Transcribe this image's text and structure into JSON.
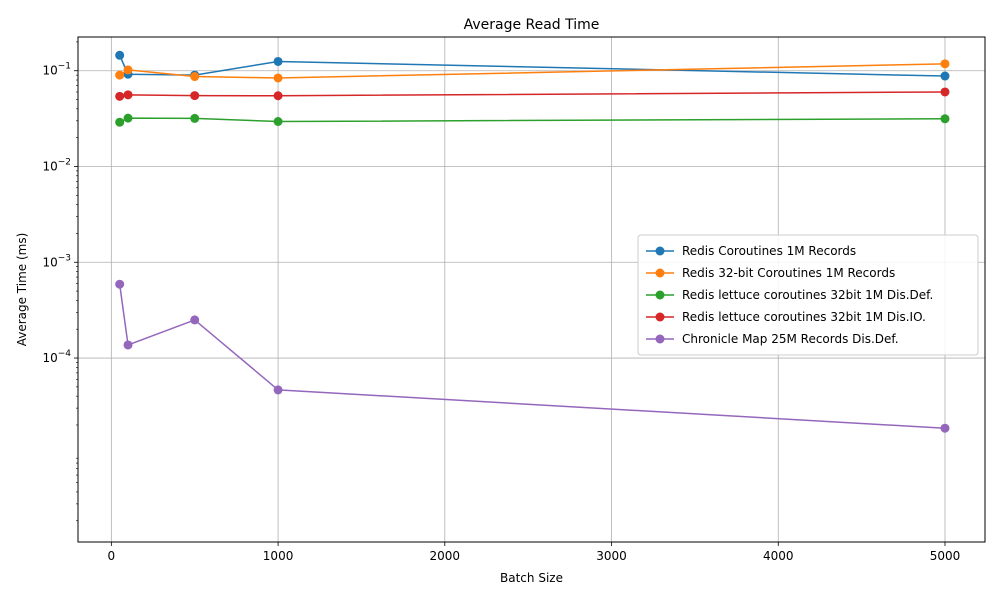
{
  "chart_data": {
    "type": "line",
    "title": "Average Read Time",
    "xlabel": "Batch Size",
    "ylabel": "Average Time (ms)",
    "xlim": [
      -200,
      5240
    ],
    "ylim": [
      1.2e-06,
      0.225
    ],
    "yscale": "log",
    "grid": true,
    "legend_position": "center-right",
    "x_ticks": [
      0,
      1000,
      2000,
      3000,
      4000,
      5000
    ],
    "x_tick_labels": [
      "0",
      "1000",
      "2000",
      "3000",
      "4000",
      "5000"
    ],
    "y_ticks": [
      0.1,
      0.01,
      0.001,
      0.0001
    ],
    "y_tick_labels": [
      {
        "base": "10",
        "exp": "−1"
      },
      {
        "base": "10",
        "exp": "−2"
      },
      {
        "base": "10",
        "exp": "−3"
      },
      {
        "base": "10",
        "exp": "−4"
      }
    ],
    "series": [
      {
        "name": "Redis Coroutines 1M Records",
        "color": "#1f77b4",
        "x": [
          50,
          100,
          500,
          1000,
          5000
        ],
        "y": [
          0.145,
          0.092,
          0.09,
          0.125,
          0.088
        ]
      },
      {
        "name": "Redis 32-bit Coroutines 1M Records",
        "color": "#ff7f0e",
        "x": [
          50,
          100,
          500,
          1000,
          5000
        ],
        "y": [
          0.09,
          0.102,
          0.087,
          0.084,
          0.118
        ]
      },
      {
        "name": "Redis lettuce coroutines 32bit 1M Dis.Def.",
        "color": "#2ca02c",
        "x": [
          50,
          100,
          500,
          1000,
          5000
        ],
        "y": [
          0.029,
          0.032,
          0.0318,
          0.0295,
          0.0315
        ]
      },
      {
        "name": "Redis lettuce coroutines 32bit 1M Dis.IO.",
        "color": "#d62728",
        "x": [
          50,
          100,
          500,
          1000,
          5000
        ],
        "y": [
          0.054,
          0.056,
          0.055,
          0.0548,
          0.06
        ]
      },
      {
        "name": "Chronicle Map 25M Records Dis.Def.",
        "color": "#9467bd",
        "x": [
          50,
          100,
          500,
          1000,
          5000
        ],
        "y": [
          0.00059,
          0.000137,
          0.00025,
          4.65e-05,
          1.85e-05
        ]
      }
    ]
  }
}
